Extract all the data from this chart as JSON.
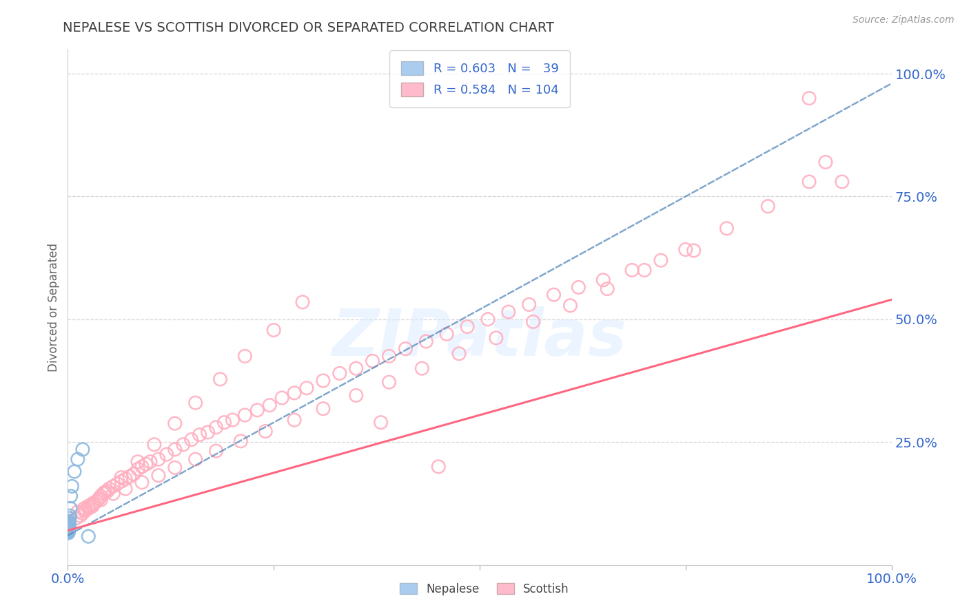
{
  "title": "NEPALESE VS SCOTTISH DIVORCED OR SEPARATED CORRELATION CHART",
  "source_text": "Source: ZipAtlas.com",
  "ylabel": "Divorced or Separated",
  "r1": 0.603,
  "n1": 39,
  "r2": 0.584,
  "n2": 104,
  "blue_color": "#8BB8E0",
  "blue_edge_color": "#7AAAD0",
  "pink_color": "#FFB0C0",
  "pink_edge_color": "#FF99AA",
  "blue_line_color": "#5588BB",
  "pink_line_color": "#FF6680",
  "bg_color": "#ffffff",
  "grid_color": "#cccccc",
  "title_color": "#404040",
  "axis_label_color": "#3366CC",
  "right_ytick_labels": [
    "25.0%",
    "50.0%",
    "75.0%",
    "100.0%"
  ],
  "right_ytick_values": [
    0.25,
    0.5,
    0.75,
    1.0
  ],
  "xlim": [
    0.0,
    1.0
  ],
  "ylim": [
    0.0,
    1.05
  ],
  "legend_text_1": "R = 0.603   N =   39",
  "legend_text_2": "R = 0.584   N = 104",
  "watermark_text": "ZIPatlas",
  "legend_handle1_color": "#AACCEE",
  "legend_handle2_color": "#FFBBCC",
  "nepalese_x": [
    0.0005,
    0.0008,
    0.001,
    0.0012,
    0.0015,
    0.0008,
    0.0006,
    0.0009,
    0.0011,
    0.0007,
    0.001,
    0.0013,
    0.0008,
    0.0006,
    0.0009,
    0.0011,
    0.0007,
    0.001,
    0.0012,
    0.0008,
    0.0015,
    0.0009,
    0.0011,
    0.0007,
    0.0013,
    0.0008,
    0.001,
    0.0012,
    0.0009,
    0.0007,
    0.002,
    0.0025,
    0.003,
    0.0035,
    0.005,
    0.008,
    0.012,
    0.018,
    0.025
  ],
  "nepalese_y": [
    0.065,
    0.07,
    0.075,
    0.08,
    0.085,
    0.068,
    0.072,
    0.078,
    0.082,
    0.07,
    0.075,
    0.08,
    0.073,
    0.068,
    0.076,
    0.082,
    0.071,
    0.077,
    0.083,
    0.069,
    0.088,
    0.074,
    0.079,
    0.067,
    0.085,
    0.072,
    0.078,
    0.084,
    0.076,
    0.069,
    0.095,
    0.1,
    0.115,
    0.14,
    0.16,
    0.19,
    0.215,
    0.235,
    0.058
  ],
  "scottish_x": [
    0.01,
    0.015,
    0.018,
    0.02,
    0.022,
    0.025,
    0.028,
    0.03,
    0.032,
    0.035,
    0.038,
    0.04,
    0.043,
    0.045,
    0.048,
    0.05,
    0.055,
    0.06,
    0.065,
    0.07,
    0.075,
    0.08,
    0.085,
    0.09,
    0.095,
    0.1,
    0.11,
    0.12,
    0.13,
    0.14,
    0.15,
    0.16,
    0.17,
    0.18,
    0.19,
    0.2,
    0.215,
    0.23,
    0.245,
    0.26,
    0.275,
    0.29,
    0.31,
    0.33,
    0.35,
    0.37,
    0.39,
    0.41,
    0.435,
    0.46,
    0.485,
    0.51,
    0.535,
    0.56,
    0.59,
    0.62,
    0.65,
    0.685,
    0.72,
    0.76,
    0.012,
    0.02,
    0.03,
    0.04,
    0.055,
    0.07,
    0.09,
    0.11,
    0.13,
    0.155,
    0.18,
    0.21,
    0.24,
    0.275,
    0.31,
    0.35,
    0.39,
    0.43,
    0.475,
    0.52,
    0.565,
    0.61,
    0.655,
    0.7,
    0.75,
    0.8,
    0.85,
    0.9,
    0.025,
    0.045,
    0.065,
    0.085,
    0.105,
    0.13,
    0.155,
    0.185,
    0.215,
    0.25,
    0.285,
    0.9,
    0.92,
    0.94,
    0.38,
    0.45
  ],
  "scottish_y": [
    0.095,
    0.1,
    0.105,
    0.11,
    0.112,
    0.115,
    0.118,
    0.12,
    0.125,
    0.13,
    0.135,
    0.14,
    0.145,
    0.148,
    0.15,
    0.155,
    0.16,
    0.165,
    0.17,
    0.175,
    0.18,
    0.185,
    0.195,
    0.2,
    0.205,
    0.21,
    0.215,
    0.225,
    0.235,
    0.245,
    0.255,
    0.265,
    0.27,
    0.28,
    0.29,
    0.295,
    0.305,
    0.315,
    0.325,
    0.34,
    0.35,
    0.36,
    0.375,
    0.39,
    0.4,
    0.415,
    0.425,
    0.44,
    0.455,
    0.47,
    0.485,
    0.5,
    0.515,
    0.53,
    0.55,
    0.565,
    0.58,
    0.6,
    0.62,
    0.64,
    0.108,
    0.115,
    0.125,
    0.132,
    0.145,
    0.155,
    0.168,
    0.182,
    0.198,
    0.215,
    0.232,
    0.252,
    0.272,
    0.295,
    0.318,
    0.345,
    0.372,
    0.4,
    0.43,
    0.462,
    0.495,
    0.528,
    0.562,
    0.6,
    0.642,
    0.685,
    0.73,
    0.78,
    0.12,
    0.148,
    0.178,
    0.21,
    0.245,
    0.288,
    0.33,
    0.378,
    0.425,
    0.478,
    0.535,
    0.95,
    0.82,
    0.78,
    0.29,
    0.2
  ],
  "nep_trend_x": [
    0.0,
    1.0
  ],
  "nep_trend_y": [
    0.06,
    0.98
  ],
  "scot_trend_x": [
    0.0,
    1.0
  ],
  "scot_trend_y": [
    0.07,
    0.54
  ]
}
